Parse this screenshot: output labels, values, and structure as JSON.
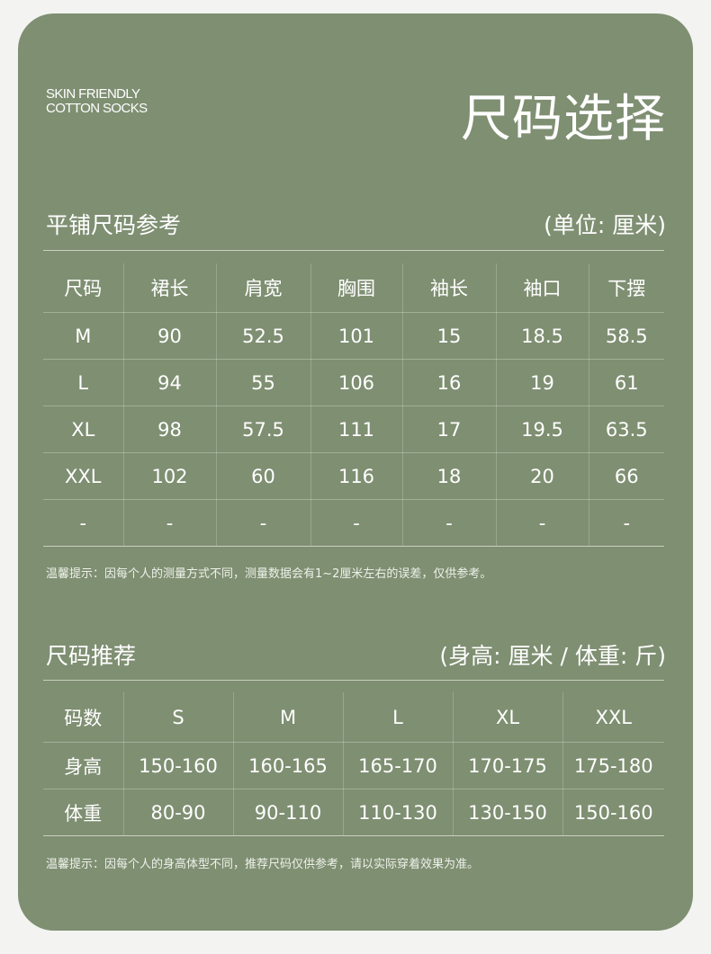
{
  "brand": {
    "line1": "SKIN FRIENDLY",
    "line2": "COTTON SOCKS"
  },
  "title": "尺码选择",
  "flat": {
    "title": "平铺尺码参考",
    "unit": "(单位: 厘米)",
    "headers": [
      "尺码",
      "裙长",
      "肩宽",
      "胸围",
      "袖长",
      "袖口",
      "下摆"
    ],
    "rows": [
      [
        "M",
        "90",
        "52.5",
        "101",
        "15",
        "18.5",
        "58.5"
      ],
      [
        "L",
        "94",
        "55",
        "106",
        "16",
        "19",
        "61"
      ],
      [
        "XL",
        "98",
        "57.5",
        "111",
        "17",
        "19.5",
        "63.5"
      ],
      [
        "XXL",
        "102",
        "60",
        "116",
        "18",
        "20",
        "66"
      ],
      [
        "-",
        "-",
        "-",
        "-",
        "-",
        "-",
        "-"
      ]
    ],
    "note": "温馨提示：因每个人的测量方式不同，测量数据会有1~2厘米左右的误差，仅供参考。"
  },
  "recommend": {
    "title": "尺码推荐",
    "unit": "(身高: 厘米 / 体重: 斤)",
    "headers": [
      "码数",
      "S",
      "M",
      "L",
      "XL",
      "XXL"
    ],
    "rows": [
      [
        "身高",
        "150-160",
        "160-165",
        "165-170",
        "170-175",
        "175-180"
      ],
      [
        "体重",
        "80-90",
        "90-110",
        "110-130",
        "130-150",
        "150-160"
      ]
    ],
    "note": "温馨提示：因每个人的身高体型不同，推荐尺码仅供参考，请以实际穿着效果为准。"
  },
  "colors": {
    "card": "#7f8f72",
    "page": "#f3f3f1",
    "text": "#ffffff"
  }
}
